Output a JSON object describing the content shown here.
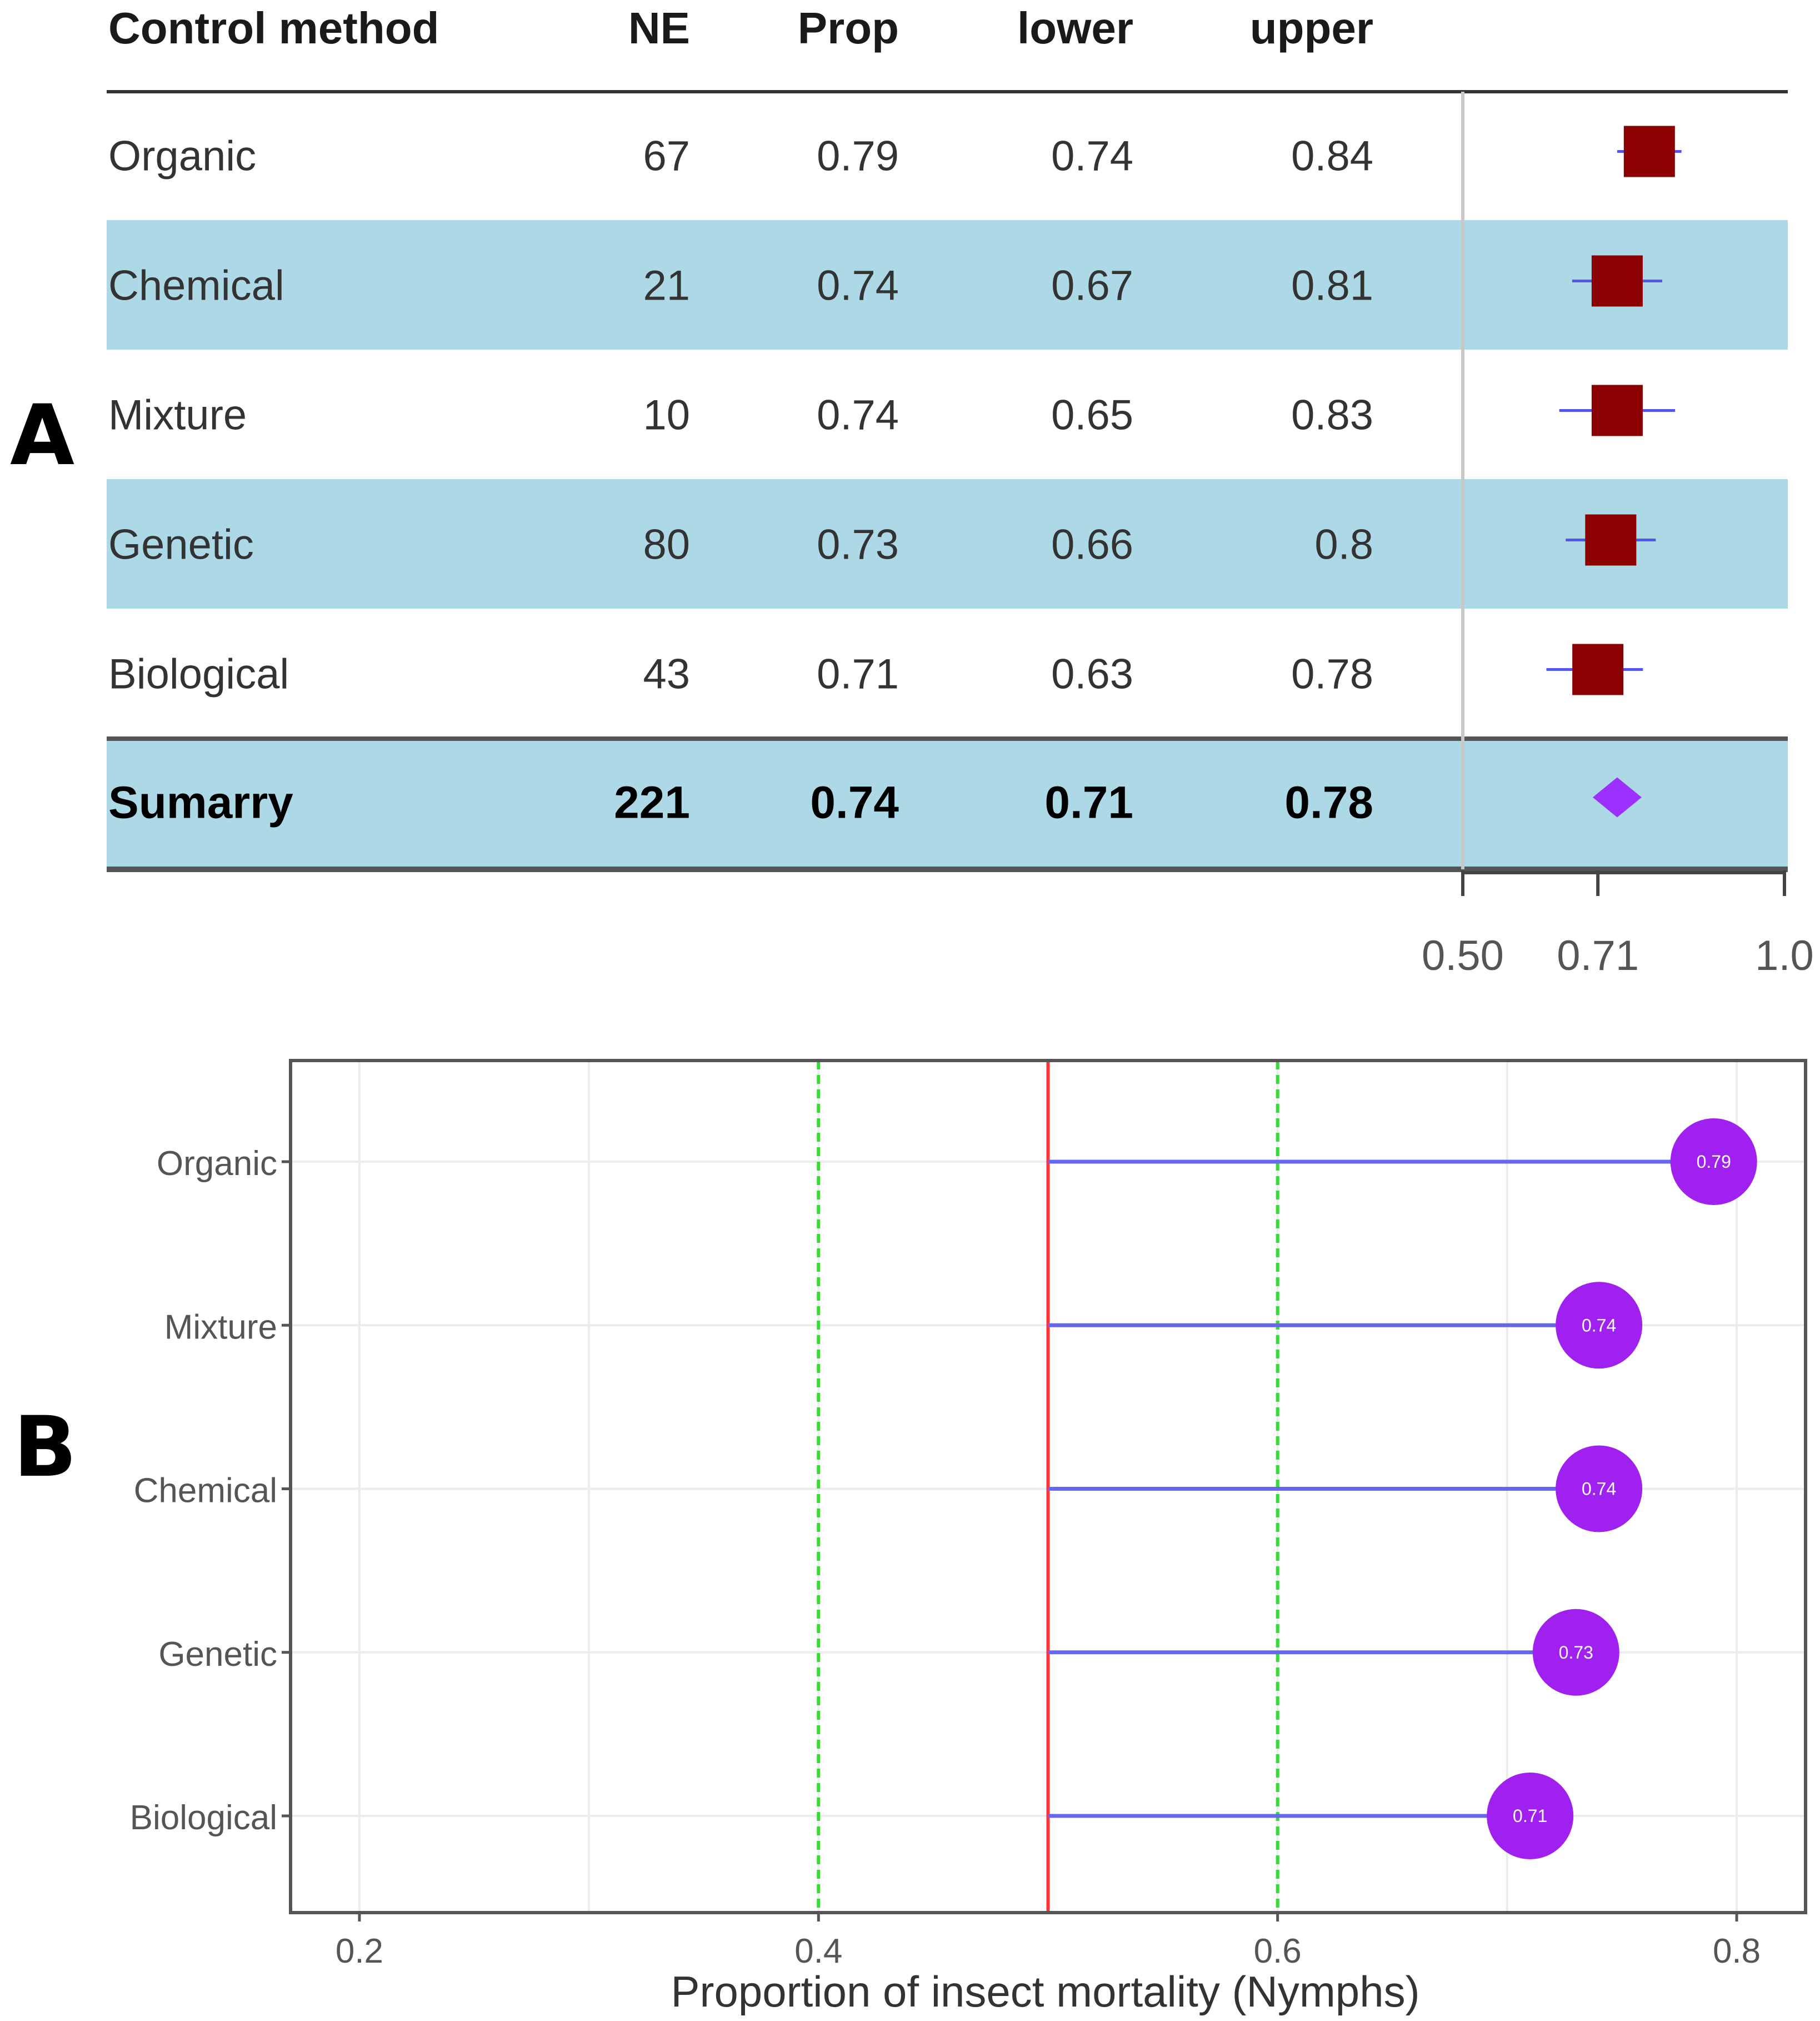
{
  "panel_labels": {
    "a": "A",
    "b": "B"
  },
  "chart_data": [
    {
      "type": "table",
      "subtype": "forest-plot",
      "columns": [
        "Control method",
        "NE",
        "Prop",
        "lower",
        "upper"
      ],
      "rows": [
        {
          "label": "Organic",
          "NE": "67",
          "Prop": "0.79",
          "lower": "0.74",
          "upper": "0.84"
        },
        {
          "label": "Chemical",
          "NE": "21",
          "Prop": "0.74",
          "lower": "0.67",
          "upper": "0.81"
        },
        {
          "label": "Mixture",
          "NE": "10",
          "Prop": "0.74",
          "lower": "0.65",
          "upper": "0.83"
        },
        {
          "label": "Genetic",
          "NE": "80",
          "Prop": "0.73",
          "lower": "0.66",
          "upper": "0.8"
        },
        {
          "label": "Biological",
          "NE": "43",
          "Prop": "0.71",
          "lower": "0.63",
          "upper": "0.78"
        }
      ],
      "summary": {
        "label": "Sumarry",
        "NE": "221",
        "Prop": "0.74",
        "lower": "0.71",
        "upper": "0.78"
      },
      "x_ticks": [
        "0.50",
        "0.71",
        "1.0"
      ],
      "reference_line": 0.5,
      "xlim": [
        0.5,
        1.0
      ],
      "marker_color": "#8b0000",
      "ci_color": "#5555ee",
      "summary_color": "#9b30ff",
      "stripe_color": "#add8e6"
    },
    {
      "type": "scatter",
      "subtype": "lollipop",
      "categories": [
        "Organic",
        "Mixture",
        "Chemical",
        "Genetic",
        "Biological"
      ],
      "values": [
        0.79,
        0.74,
        0.74,
        0.73,
        0.71
      ],
      "point_labels": [
        "0.79",
        "0.74",
        "0.74",
        "0.73",
        "0.71"
      ],
      "baseline": 0.5,
      "reference_lines": [
        {
          "value": 0.5,
          "color": "#ff3333",
          "style": "solid"
        },
        {
          "value": 0.4,
          "color": "#33dd33",
          "style": "dashed"
        },
        {
          "value": 0.6,
          "color": "#33dd33",
          "style": "dashed"
        }
      ],
      "x_ticks": [
        "0.2",
        "0.4",
        "0.6",
        "0.8"
      ],
      "xlim": [
        0.17,
        0.83
      ],
      "xlabel": "Proportion of insect mortality (Nymphs)",
      "ylabel": "",
      "grid": true,
      "point_color": "#a020f0",
      "stem_color": "#6666ee"
    }
  ]
}
